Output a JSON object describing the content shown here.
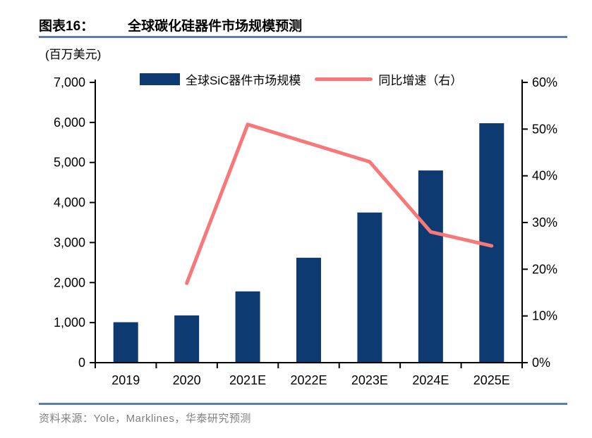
{
  "header": {
    "figure_label": "图表16：",
    "title": "全球碳化硅器件市场规模预测"
  },
  "chart": {
    "unit_label": "(百万美元)",
    "legend": {
      "bar_label": "全球SiC器件市场规模",
      "line_label": "同比增速（右）"
    }
  },
  "chart_data": {
    "type": "bar",
    "subtype": "bar+line combo, dual axis",
    "title": "全球碳化硅器件市场规模预测",
    "categories": [
      "2019",
      "2020",
      "2021E",
      "2022E",
      "2023E",
      "2024E",
      "2025E"
    ],
    "series": [
      {
        "name": "全球SiC器件市场规模",
        "type": "bar",
        "axis": "left",
        "unit": "百万美元",
        "values": [
          1010,
          1180,
          1780,
          2620,
          3750,
          4800,
          5980
        ]
      },
      {
        "name": "同比增速（右）",
        "type": "line",
        "axis": "right",
        "unit": "%",
        "values": [
          null,
          17,
          51,
          47,
          43,
          28,
          25
        ]
      }
    ],
    "y_left": {
      "min": 0,
      "max": 7000,
      "step": 1000
    },
    "y_right": {
      "min": 0,
      "max": 60,
      "step": 10,
      "suffix": "%"
    },
    "grid": false,
    "legend_position": "top",
    "colors": {
      "bar": "#0E3A72",
      "line": "#F87779",
      "axis": "#000000",
      "accent_rule": "#5B7CAE",
      "source_text": "#808080"
    }
  },
  "footer": {
    "source": "资料来源：Yole，Marklines，华泰研究预测"
  }
}
